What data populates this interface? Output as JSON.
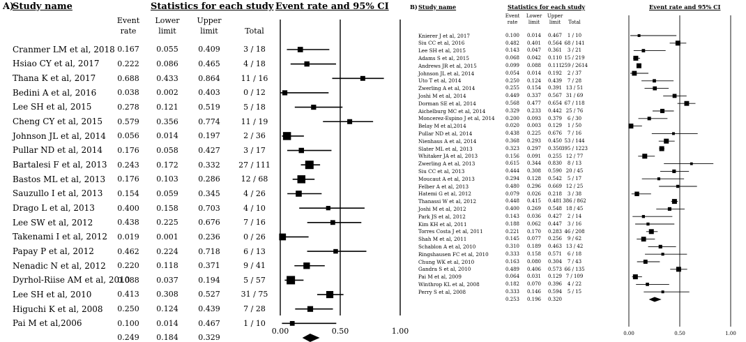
{
  "panels": [
    {
      "id": "A",
      "panel_label": "A)",
      "header_study": "Study name",
      "header_stats": "Statistics for each study",
      "header_plot": "Event rate and 95% CI",
      "col_event_rate": [
        "Event",
        "rate"
      ],
      "col_lower": [
        "Lower",
        "limit"
      ],
      "col_upper": [
        "Upper",
        "limit"
      ],
      "col_total": [
        "Total"
      ],
      "rows": [
        {
          "study": "Cranmer LM et al, 2018",
          "rate": "0.167",
          "lower": "0.055",
          "upper": "0.409",
          "total": "3 / 18"
        },
        {
          "study": "Hsiao CY et al, 2017",
          "rate": "0.222",
          "lower": "0.086",
          "upper": "0.465",
          "total": "4 / 18"
        },
        {
          "study": "Thana K et al, 2017",
          "rate": "0.688",
          "lower": "0.433",
          "upper": "0.864",
          "total": "11 / 16"
        },
        {
          "study": "Bedini A et al, 2016",
          "rate": "0.038",
          "lower": "0.002",
          "upper": "0.403",
          "total": "0 / 12"
        },
        {
          "study": "Lee SH et al, 2015",
          "rate": "0.278",
          "lower": "0.121",
          "upper": "0.519",
          "total": "5 / 18"
        },
        {
          "study": "Cheng CY et al, 2015",
          "rate": "0.579",
          "lower": "0.356",
          "upper": "0.774",
          "total": "11 / 19"
        },
        {
          "study": "Johnson JL et al, 2014",
          "rate": "0.056",
          "lower": "0.014",
          "upper": "0.197",
          "total": "2 / 36"
        },
        {
          "study": "Pullar ND et al, 2014",
          "rate": "0.176",
          "lower": "0.058",
          "upper": "0.427",
          "total": "3 / 17"
        },
        {
          "study": "Bartalesi F et al, 2013",
          "rate": "0.243",
          "lower": "0.172",
          "upper": "0.332",
          "total": "27 / 111"
        },
        {
          "study": "Bastos ML et al, 2013",
          "rate": "0.176",
          "lower": "0.103",
          "upper": "0.286",
          "total": "12 / 68"
        },
        {
          "study": "Sauzullo I et al, 2013",
          "rate": "0.154",
          "lower": "0.059",
          "upper": "0.345",
          "total": "4 / 26"
        },
        {
          "study": "Drago L et al, 2013",
          "rate": "0.400",
          "lower": "0.158",
          "upper": "0.703",
          "total": "4 / 10"
        },
        {
          "study": "Lee SW et al, 2012",
          "rate": "0.438",
          "lower": "0.225",
          "upper": "0.676",
          "total": "7 / 16"
        },
        {
          "study": "Takenami I et al, 2012",
          "rate": "0.019",
          "lower": "0.001",
          "upper": "0.236",
          "total": "0 / 26"
        },
        {
          "study": "Papay P et al, 2012",
          "rate": "0.462",
          "lower": "0.224",
          "upper": "0.718",
          "total": "6 / 13"
        },
        {
          "study": "Nenadic N et al, 2012",
          "rate": "0.220",
          "lower": "0.118",
          "upper": "0.371",
          "total": "9 / 41"
        },
        {
          "study": "Dyrhol-Riise AM et al, 2010",
          "rate": "0.088",
          "lower": "0.037",
          "upper": "0.194",
          "total": "5 / 57"
        },
        {
          "study": "Lee SH et al, 2010",
          "rate": "0.413",
          "lower": "0.308",
          "upper": "0.527",
          "total": "31 / 75"
        },
        {
          "study": "Higuchi K et al, 2008",
          "rate": "0.250",
          "lower": "0.124",
          "upper": "0.439",
          "total": "7 / 28"
        },
        {
          "study": "Pai M et al,2006",
          "rate": "0.100",
          "lower": "0.014",
          "upper": "0.467",
          "total": "1 / 10"
        }
      ],
      "summary": {
        "rate": "0.249",
        "lower": "0.184",
        "upper": "0.329"
      },
      "ticks": [
        "0.00",
        "0.50",
        "1.00"
      ]
    },
    {
      "id": "B",
      "panel_label": "B)",
      "header_study": "Study name",
      "header_stats": "Statistics for each study",
      "header_plot": "Event rate and 95% CI",
      "col_event_rate": [
        "Event",
        "rate"
      ],
      "col_lower": [
        "Lower",
        "limit"
      ],
      "col_upper": [
        "Upper",
        "limit"
      ],
      "col_total": [
        "Total"
      ],
      "rows": [
        {
          "study": "Knierer J et al, 2017",
          "rate": "0.100",
          "lower": "0.014",
          "upper": "0.467",
          "total": "1 / 10"
        },
        {
          "study": "Siu CC et al, 2016",
          "rate": "0.482",
          "lower": "0.401",
          "upper": "0.564",
          "total": "68 / 141"
        },
        {
          "study": "Lee SH et al, 2015",
          "rate": "0.143",
          "lower": "0.047",
          "upper": "0.361",
          "total": "3 / 21"
        },
        {
          "study": "Adams S et al, 2015",
          "rate": "0.068",
          "lower": "0.042",
          "upper": "0.110",
          "total": "15 / 219"
        },
        {
          "study": "Andrews JR et al, 2015",
          "rate": "0.099",
          "lower": "0.088",
          "upper": "0.111",
          "total": "259 / 2614"
        },
        {
          "study": "Johnson JL et al, 2014",
          "rate": "0.054",
          "lower": "0.014",
          "upper": "0.192",
          "total": "2 / 37"
        },
        {
          "study": "Uto T et al, 2014",
          "rate": "0.250",
          "lower": "0.124",
          "upper": "0.439",
          "total": "7 / 28"
        },
        {
          "study": "Zwerling A et al, 2014",
          "rate": "0.255",
          "lower": "0.154",
          "upper": "0.391",
          "total": "13 / 51"
        },
        {
          "study": "Joshi M et al, 2014",
          "rate": "0.449",
          "lower": "0.337",
          "upper": "0.567",
          "total": "31 / 69"
        },
        {
          "study": "Dorman SE et al, 2014",
          "rate": "0.568",
          "lower": "0.477",
          "upper": "0.654",
          "total": "67 / 118"
        },
        {
          "study": "Aichelburg MC et al, 2014",
          "rate": "0.329",
          "lower": "0.233",
          "upper": "0.442",
          "total": "25 / 76"
        },
        {
          "study": "Moncerez-Espino J et al, 2014",
          "rate": "0.200",
          "lower": "0.093",
          "upper": "0.379",
          "total": "6 / 30"
        },
        {
          "study": "Belay M et al,2014",
          "rate": "0.020",
          "lower": "0.003",
          "upper": "0.129",
          "total": "1 / 50"
        },
        {
          "study": "Pullar ND et al, 2014",
          "rate": "0.438",
          "lower": "0.225",
          "upper": "0.676",
          "total": "7 / 16"
        },
        {
          "study": "Nienhaus A et al, 2014",
          "rate": "0.368",
          "lower": "0.293",
          "upper": "0.450",
          "total": "53 / 144"
        },
        {
          "study": "Slater ML et al, 2013",
          "rate": "0.323",
          "lower": "0.297",
          "upper": "0.350",
          "total": "395 / 1223"
        },
        {
          "study": "Whitaker JA et al, 2013",
          "rate": "0.156",
          "lower": "0.091",
          "upper": "0.255",
          "total": "12 / 77"
        },
        {
          "study": "Zwerling A et al, 2013",
          "rate": "0.615",
          "lower": "0.344",
          "upper": "0.830",
          "total": "8 / 13"
        },
        {
          "study": "Siu CC et al, 2013",
          "rate": "0.444",
          "lower": "0.308",
          "upper": "0.590",
          "total": "20 / 45"
        },
        {
          "study": "Moucaut A et al, 2013",
          "rate": "0.294",
          "lower": "0.128",
          "upper": "0.542",
          "total": "5 / 17"
        },
        {
          "study": "Felber A et al, 2013",
          "rate": "0.480",
          "lower": "0.296",
          "upper": "0.669",
          "total": "12 / 25"
        },
        {
          "study": "Hatemi G et al, 2012",
          "rate": "0.079",
          "lower": "0.026",
          "upper": "0.218",
          "total": "3 / 38"
        },
        {
          "study": "Thanassi W et al, 2012",
          "rate": "0.448",
          "lower": "0.415",
          "upper": "0.481",
          "total": "386 / 862"
        },
        {
          "study": "Joshi M et al, 2012",
          "rate": "0.400",
          "lower": "0.269",
          "upper": "0.548",
          "total": "18 / 45"
        },
        {
          "study": "Park JS et al, 2012",
          "rate": "0.143",
          "lower": "0.036",
          "upper": "0.427",
          "total": "2 / 14"
        },
        {
          "study": "Kim KH et al, 2011",
          "rate": "0.188",
          "lower": "0.062",
          "upper": "0.447",
          "total": "3 / 16"
        },
        {
          "study": "Torres Costa J et al, 2011",
          "rate": "0.221",
          "lower": "0.170",
          "upper": "0.283",
          "total": "46 / 208"
        },
        {
          "study": "Shah M et al, 2011",
          "rate": "0.145",
          "lower": "0.077",
          "upper": "0.256",
          "total": "9 / 62"
        },
        {
          "study": "Schablon A et al, 2010",
          "rate": "0.310",
          "lower": "0.189",
          "upper": "0.463",
          "total": "13 / 42"
        },
        {
          "study": "Ringshausen FC et al, 2010",
          "rate": "0.333",
          "lower": "0.158",
          "upper": "0.571",
          "total": "6 / 18"
        },
        {
          "study": "Chung WK et al, 2010",
          "rate": "0.163",
          "lower": "0.080",
          "upper": "0.304",
          "total": "7 / 43"
        },
        {
          "study": "Gandra S et al, 2010",
          "rate": "0.489",
          "lower": "0.406",
          "upper": "0.573",
          "total": "66 / 135"
        },
        {
          "study": "Pai M et al, 2009",
          "rate": "0.064",
          "lower": "0.031",
          "upper": "0.129",
          "total": "7 / 109"
        },
        {
          "study": "Winthrop KL et al, 2008",
          "rate": "0.182",
          "lower": "0.070",
          "upper": "0.396",
          "total": "4 / 22"
        },
        {
          "study": "Perry S et al, 2008",
          "rate": "0.333",
          "lower": "0.146",
          "upper": "0.594",
          "total": "5 / 15"
        }
      ],
      "summary": {
        "rate": "0.253",
        "lower": "0.196",
        "upper": "0.320"
      },
      "ticks": [
        "0.00",
        "0.50",
        "1.00"
      ]
    }
  ],
  "chart_data": [
    {
      "type": "forest",
      "panel": "A",
      "axis_range": [
        0,
        1
      ],
      "categories": [
        "Cranmer LM et al, 2018",
        "Hsiao CY et al, 2017",
        "Thana K et al, 2017",
        "Bedini A et al, 2016",
        "Lee SH et al, 2015",
        "Cheng CY et al, 2015",
        "Johnson JL et al, 2014",
        "Pullar ND et al, 2014",
        "Bartalesi F et al, 2013",
        "Bastos ML et al, 2013",
        "Sauzullo I et al, 2013",
        "Drago L et al, 2013",
        "Lee SW et al, 2012",
        "Takenami I et al, 2012",
        "Papay P et al, 2012",
        "Nenadic N et al, 2012",
        "Dyrhol-Riise AM et al, 2010",
        "Lee SH et al, 2010",
        "Higuchi K et al, 2008",
        "Pai M et al,2006"
      ],
      "event_rate": [
        0.167,
        0.222,
        0.688,
        0.038,
        0.278,
        0.579,
        0.056,
        0.176,
        0.243,
        0.176,
        0.154,
        0.4,
        0.438,
        0.019,
        0.462,
        0.22,
        0.088,
        0.413,
        0.25,
        0.1
      ],
      "lower": [
        0.055,
        0.086,
        0.433,
        0.002,
        0.121,
        0.356,
        0.014,
        0.058,
        0.172,
        0.103,
        0.059,
        0.158,
        0.225,
        0.001,
        0.224,
        0.118,
        0.037,
        0.308,
        0.124,
        0.014
      ],
      "upper": [
        0.409,
        0.465,
        0.864,
        0.403,
        0.519,
        0.774,
        0.197,
        0.427,
        0.332,
        0.286,
        0.345,
        0.703,
        0.676,
        0.236,
        0.718,
        0.371,
        0.194,
        0.527,
        0.439,
        0.467
      ],
      "summary": {
        "event_rate": 0.249,
        "lower": 0.184,
        "upper": 0.329
      }
    },
    {
      "type": "forest",
      "panel": "B",
      "axis_range": [
        0,
        1
      ],
      "categories": [
        "Knierer J et al, 2017",
        "Siu CC et al, 2016",
        "Lee SH et al, 2015",
        "Adams S et al, 2015",
        "Andrews JR et al, 2015",
        "Johnson JL et al, 2014",
        "Uto T et al, 2014",
        "Zwerling A et al, 2014",
        "Joshi M et al, 2014",
        "Dorman SE et al, 2014",
        "Aichelburg MC et al, 2014",
        "Moncerez-Espino J et al, 2014",
        "Belay M et al,2014",
        "Pullar ND et al, 2014",
        "Nienhaus A et al, 2014",
        "Slater ML et al, 2013",
        "Whitaker JA et al, 2013",
        "Zwerling A et al, 2013",
        "Siu CC et al, 2013",
        "Moucaut A et al, 2013",
        "Felber A et al, 2013",
        "Hatemi G et al, 2012",
        "Thanassi W et al, 2012",
        "Joshi M et al, 2012",
        "Park JS et al, 2012",
        "Kim KH et al, 2011",
        "Torres Costa J et al, 2011",
        "Shah M et al, 2011",
        "Schablon A et al, 2010",
        "Ringshausen FC et al, 2010",
        "Chung WK et al, 2010",
        "Gandra S et al, 2010",
        "Pai M et al, 2009",
        "Winthrop KL et al, 2008",
        "Perry S et al, 2008"
      ],
      "event_rate": [
        0.1,
        0.482,
        0.143,
        0.068,
        0.099,
        0.054,
        0.25,
        0.255,
        0.449,
        0.568,
        0.329,
        0.2,
        0.02,
        0.438,
        0.368,
        0.323,
        0.156,
        0.615,
        0.444,
        0.294,
        0.48,
        0.079,
        0.448,
        0.4,
        0.143,
        0.188,
        0.221,
        0.145,
        0.31,
        0.333,
        0.163,
        0.489,
        0.064,
        0.182,
        0.333
      ],
      "lower": [
        0.014,
        0.401,
        0.047,
        0.042,
        0.088,
        0.014,
        0.124,
        0.154,
        0.337,
        0.477,
        0.233,
        0.093,
        0.003,
        0.225,
        0.293,
        0.297,
        0.091,
        0.344,
        0.308,
        0.128,
        0.296,
        0.026,
        0.415,
        0.269,
        0.036,
        0.062,
        0.17,
        0.077,
        0.189,
        0.158,
        0.08,
        0.406,
        0.031,
        0.07,
        0.146
      ],
      "upper": [
        0.467,
        0.564,
        0.361,
        0.11,
        0.111,
        0.192,
        0.439,
        0.391,
        0.567,
        0.654,
        0.442,
        0.379,
        0.129,
        0.676,
        0.45,
        0.35,
        0.255,
        0.83,
        0.59,
        0.542,
        0.669,
        0.218,
        0.481,
        0.548,
        0.427,
        0.447,
        0.283,
        0.256,
        0.463,
        0.571,
        0.304,
        0.573,
        0.129,
        0.396,
        0.594
      ],
      "summary": {
        "event_rate": 0.253,
        "lower": 0.196,
        "upper": 0.32
      }
    }
  ]
}
